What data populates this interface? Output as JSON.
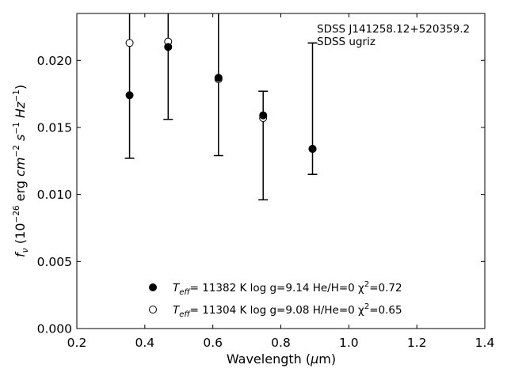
{
  "chart_data": {
    "type": "scatter",
    "xlabel_main": "Wavelength (",
    "xlabel_mu": "μ",
    "xlabel_unit": "m)",
    "ylabel_f": "f",
    "ylabel_nu": "ν",
    "ylabel_main": " (10",
    "ylabel_exp26": "−26",
    "ylabel_erg": " erg ",
    "ylabel_cm": "cm",
    "ylabel_exp2": "−2",
    "ylabel_s": " s",
    "ylabel_exp1": "−1",
    "ylabel_hz": " Hz",
    "ylabel_exp1b": "−1",
    "ylabel_close": ")",
    "xlim": [
      0.2,
      1.4
    ],
    "ylim": [
      0.0,
      0.0235
    ],
    "xticks": [
      {
        "value": 0.2,
        "label": "0.2"
      },
      {
        "value": 0.4,
        "label": "0.4"
      },
      {
        "value": 0.6,
        "label": "0.6"
      },
      {
        "value": 0.8,
        "label": "0.8"
      },
      {
        "value": 1.0,
        "label": "1.0"
      },
      {
        "value": 1.2,
        "label": "1.2"
      },
      {
        "value": 1.4,
        "label": "1.4"
      }
    ],
    "yticks": [
      {
        "value": 0.0,
        "label": "0.000"
      },
      {
        "value": 0.005,
        "label": "0.005"
      },
      {
        "value": 0.01,
        "label": "0.010"
      },
      {
        "value": 0.015,
        "label": "0.015"
      },
      {
        "value": 0.02,
        "label": "0.020"
      }
    ],
    "annotations": [
      "SDSS J141258.12+520359.2",
      "SDSS ugriz"
    ],
    "observed": {
      "x": [
        0.3551,
        0.4686,
        0.6166,
        0.748,
        0.8932
      ],
      "y": [
        0.0174,
        0.021,
        0.0187,
        0.0159,
        0.0134
      ],
      "yerr_low": [
        0.0127,
        0.0156,
        0.0129,
        0.0096,
        0.0115
      ],
      "yerr_high": [
        0.0235,
        0.0235,
        0.0235,
        0.0177,
        0.0213
      ]
    },
    "series": [
      {
        "name": "T_eff= 11382 K  log g=9.14  He/H=0  χ²=0.72",
        "marker": "filled",
        "x": [
          0.3551,
          0.4686,
          0.6166,
          0.748,
          0.8932
        ],
        "y": [
          0.0174,
          0.021,
          0.0187,
          0.0159,
          0.0134
        ]
      },
      {
        "name": "T_eff= 11304 K  log g=9.08  H/He=0  χ²=0.65",
        "marker": "open",
        "x": [
          0.3551,
          0.4686,
          0.6166,
          0.748,
          0.8932
        ],
        "y": [
          0.0213,
          0.0214,
          0.0186,
          0.0157,
          0.0134
        ]
      }
    ],
    "legend": {
      "placement": "lower-center",
      "entries": [
        {
          "T": "T",
          "sub": "eff",
          "rest": "= 11382 K  log g=9.14  He/H=0  χ",
          "sup": "2",
          "tail": "=0.72",
          "marker": "filled"
        },
        {
          "T": "T",
          "sub": "eff",
          "rest": "= 11304 K  log g=9.08  H/He=0  χ",
          "sup": "2",
          "tail": "=0.65",
          "marker": "open"
        }
      ]
    },
    "grid": false
  }
}
